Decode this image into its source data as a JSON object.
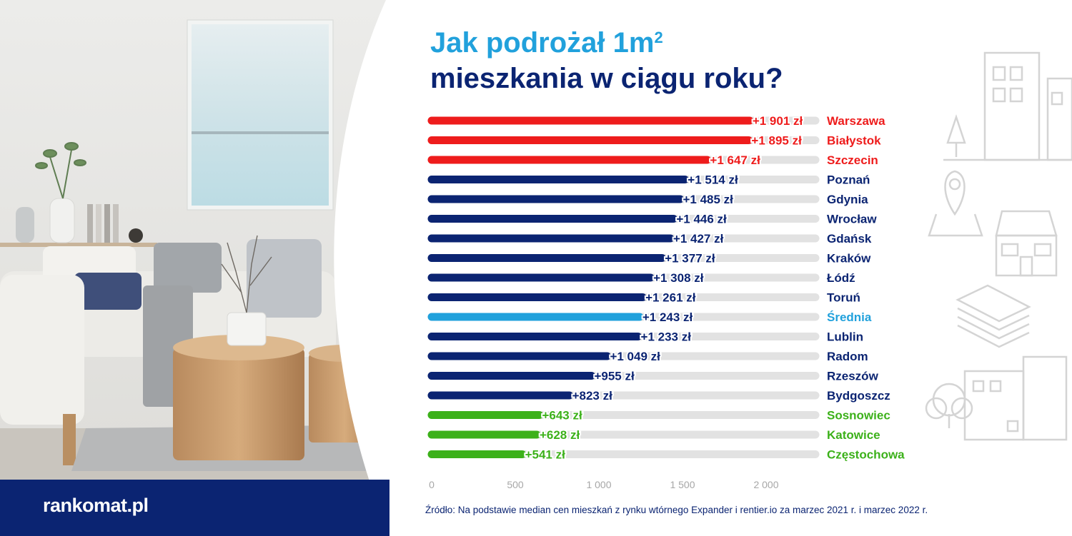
{
  "title": {
    "line1": "Jak podrożał 1m",
    "line1_sup": "2",
    "line2": "mieszkania w ciągu roku?"
  },
  "brand": {
    "logo_text": "rankomat.pl"
  },
  "colors": {
    "top": "#ee1c1c",
    "middle": "#0b2472",
    "average": "#21a1dc",
    "bottom": "#3cb11a",
    "track": "#e2e2e2"
  },
  "chart_data": {
    "type": "bar",
    "orientation": "horizontal",
    "xlim": [
      0,
      2300
    ],
    "x_ticks": [
      {
        "value": 0,
        "label": "0"
      },
      {
        "value": 500,
        "label": "500"
      },
      {
        "value": 1000,
        "label": "1 000"
      },
      {
        "value": 1500,
        "label": "1 500"
      },
      {
        "value": 2000,
        "label": "2 000"
      }
    ],
    "grid": false,
    "bars": [
      {
        "city": "Warszawa",
        "value": 1901,
        "label": "+1 901 zł",
        "group": "top"
      },
      {
        "city": "Białystok",
        "value": 1895,
        "label": "+1 895 zł",
        "group": "top"
      },
      {
        "city": "Szczecin",
        "value": 1647,
        "label": "+1 647 zł",
        "group": "top"
      },
      {
        "city": "Poznań",
        "value": 1514,
        "label": "+1 514 zł",
        "group": "middle"
      },
      {
        "city": "Gdynia",
        "value": 1485,
        "label": "+1 485 zł",
        "group": "middle"
      },
      {
        "city": "Wrocław",
        "value": 1446,
        "label": "+1 446 zł",
        "group": "middle"
      },
      {
        "city": "Gdańsk",
        "value": 1427,
        "label": "+1 427 zł",
        "group": "middle"
      },
      {
        "city": "Kraków",
        "value": 1377,
        "label": "+1 377 zł",
        "group": "middle"
      },
      {
        "city": "Łódź",
        "value": 1308,
        "label": "+1 308 zł",
        "group": "middle"
      },
      {
        "city": "Toruń",
        "value": 1261,
        "label": "+1 261 zł",
        "group": "middle"
      },
      {
        "city": "Średnia",
        "value": 1243,
        "label": "+1 243 zł",
        "group": "average"
      },
      {
        "city": "Lublin",
        "value": 1233,
        "label": "+1 233 zł",
        "group": "middle"
      },
      {
        "city": "Radom",
        "value": 1049,
        "label": "+1 049 zł",
        "group": "middle"
      },
      {
        "city": "Rzeszów",
        "value": 955,
        "label": "+955 zł",
        "group": "middle"
      },
      {
        "city": "Bydgoszcz",
        "value": 823,
        "label": "+823 zł",
        "group": "middle"
      },
      {
        "city": "Sosnowiec",
        "value": 643,
        "label": "+643 zł",
        "group": "bottom"
      },
      {
        "city": "Katowice",
        "value": 628,
        "label": "+628 zł",
        "group": "bottom"
      },
      {
        "city": "Częstochowa",
        "value": 541,
        "label": "+541 zł",
        "group": "bottom"
      }
    ]
  },
  "source": "Źródło: Na podstawie median cen mieszkań z rynku wtórnego Expander i rentier.io za marzec 2021 r. i marzec 2022 r."
}
